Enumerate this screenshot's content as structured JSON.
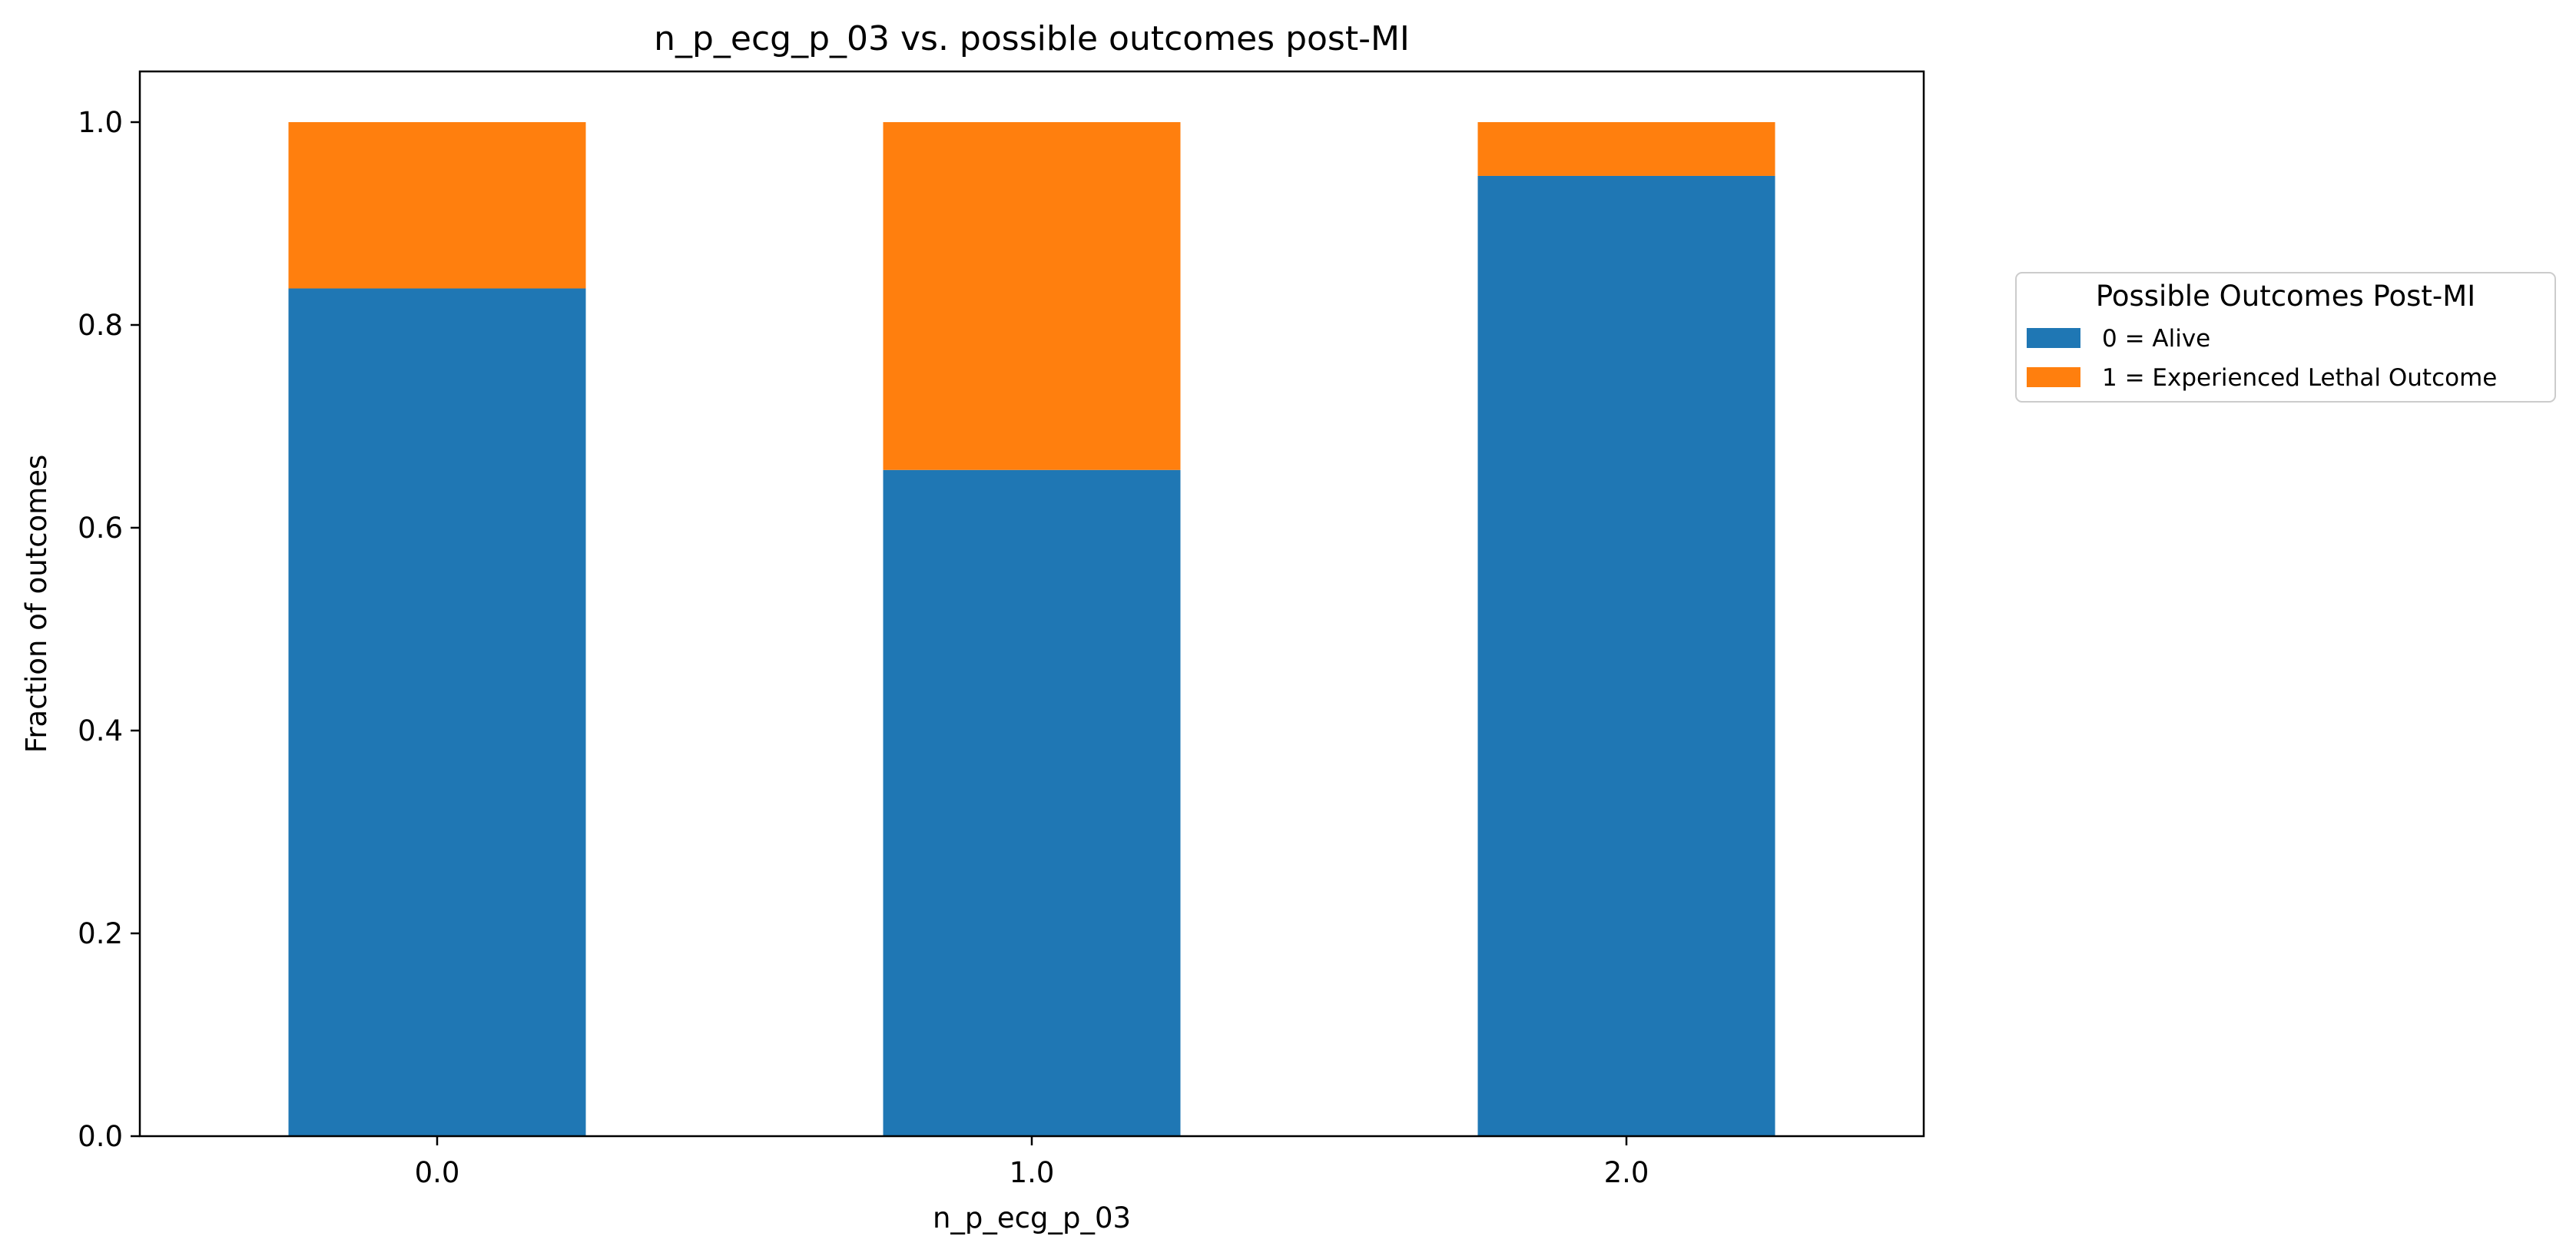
{
  "chart_data": {
    "type": "bar",
    "stacked": true,
    "title": "n_p_ecg_p_03 vs. possible outcomes post-MI",
    "xlabel": "n_p_ecg_p_03",
    "ylabel": "Fraction of outcomes",
    "categories": [
      "0.0",
      "1.0",
      "2.0"
    ],
    "series": [
      {
        "name": "0 = Alive",
        "color": "#1f77b4",
        "values": [
          0.836,
          0.657,
          0.947
        ]
      },
      {
        "name": "1 = Experienced Lethal Outcome",
        "color": "#ff7f0e",
        "values": [
          0.164,
          0.343,
          0.053
        ]
      }
    ],
    "ylim": [
      0,
      1.05
    ],
    "yticks": [
      "0.0",
      "0.2",
      "0.4",
      "0.6",
      "0.8",
      "1.0"
    ],
    "legend": {
      "title": "Possible Outcomes Post-MI",
      "placement": "outside-right"
    },
    "grid": false
  }
}
